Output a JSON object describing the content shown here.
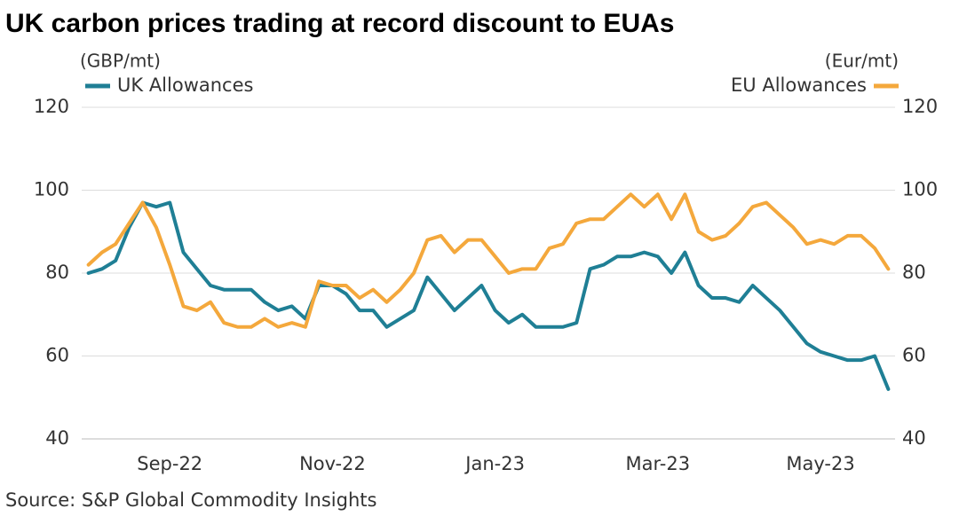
{
  "chart_data": {
    "type": "line",
    "title": "UK carbon prices trading at record discount to EUAs",
    "source": "Source: S&P Global Commodity Insights",
    "y_label": "(GBP/mt)",
    "y2_label": "(Eur/mt)",
    "categories": [
      null,
      null,
      null,
      null,
      null,
      null,
      "Sep-22",
      null,
      null,
      null,
      null,
      null,
      null,
      null,
      null,
      null,
      null,
      null,
      "Nov-22",
      null,
      null,
      null,
      null,
      null,
      null,
      null,
      null,
      null,
      null,
      null,
      "Jan-23",
      null,
      null,
      null,
      null,
      null,
      null,
      null,
      null,
      null,
      null,
      null,
      "Mar-23",
      null,
      null,
      null,
      null,
      null,
      null,
      null,
      null,
      null,
      null,
      null,
      "May-23",
      null,
      null,
      null,
      null,
      null
    ],
    "series": [
      {
        "name": "UK Allowances",
        "color": "#1f7f95",
        "values": [
          80,
          81,
          83,
          91,
          97,
          96,
          97,
          85,
          81,
          77,
          76,
          76,
          76,
          73,
          71,
          72,
          69,
          77,
          77,
          75,
          71,
          71,
          67,
          69,
          71,
          79,
          75,
          71,
          74,
          77,
          71,
          68,
          70,
          67,
          67,
          67,
          68,
          81,
          82,
          84,
          84,
          85,
          84,
          80,
          85,
          77,
          74,
          74,
          73,
          77,
          74,
          71,
          67,
          63,
          61,
          60,
          59,
          59,
          60,
          52
        ]
      },
      {
        "name": "EU Allowances",
        "color": "#f4a83c",
        "axis": "y2",
        "values": [
          82,
          85,
          87,
          92,
          97,
          91,
          82,
          72,
          71,
          73,
          68,
          67,
          67,
          69,
          67,
          68,
          67,
          78,
          77,
          77,
          74,
          76,
          73,
          76,
          80,
          88,
          89,
          85,
          88,
          88,
          84,
          80,
          81,
          81,
          86,
          87,
          92,
          93,
          93,
          96,
          99,
          96,
          99,
          93,
          99,
          90,
          88,
          89,
          92,
          96,
          97,
          94,
          91,
          87,
          88,
          87,
          89,
          89,
          86,
          81
        ]
      }
    ],
    "ylim": [
      40,
      120
    ],
    "yticks": [
      40,
      60,
      80,
      100,
      120
    ],
    "y2lim": [
      40,
      120
    ],
    "y2ticks": [
      40,
      60,
      80,
      100,
      120
    ],
    "grid": true
  }
}
